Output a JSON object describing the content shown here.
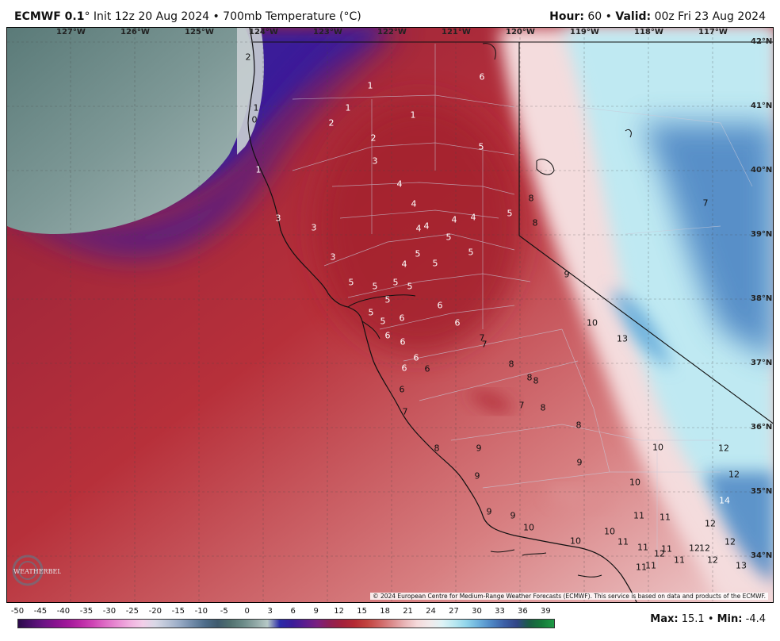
{
  "header": {
    "model": "ECMWF 0.1",
    "init": "° Init 12z 20 Aug 2024 • 700mb Temperature (°C)",
    "hour_label": "Hour:",
    "hour_value": "60",
    "valid_label": "Valid:",
    "valid_value": "00z Fri 23 Aug 2024"
  },
  "map": {
    "longitude_labels": [
      "127°W",
      "126°W",
      "125°W",
      "124°W",
      "123°W",
      "122°W",
      "121°W",
      "120°W",
      "119°W",
      "118°W",
      "117°W"
    ],
    "latitude_labels": [
      "42°N",
      "41°N",
      "40°N",
      "39°N",
      "38°N",
      "37°N",
      "36°N",
      "35°N",
      "34°N"
    ],
    "temperature_labels": [
      {
        "v": "2",
        "c": "black"
      },
      {
        "v": "1",
        "c": "black"
      },
      {
        "v": "0",
        "c": "black"
      },
      {
        "v": "1",
        "c": "white"
      },
      {
        "v": "1",
        "c": "white"
      },
      {
        "v": "1",
        "c": "white"
      },
      {
        "v": "2",
        "c": "white"
      },
      {
        "v": "2",
        "c": "white"
      },
      {
        "v": "3",
        "c": "white"
      },
      {
        "v": "1",
        "c": "white"
      },
      {
        "v": "6",
        "c": "white"
      },
      {
        "v": "5",
        "c": "white"
      },
      {
        "v": "4",
        "c": "white"
      },
      {
        "v": "4",
        "c": "white"
      },
      {
        "v": "4",
        "c": "white"
      },
      {
        "v": "4",
        "c": "white"
      },
      {
        "v": "4",
        "c": "white"
      },
      {
        "v": "4",
        "c": "white"
      },
      {
        "v": "5",
        "c": "white"
      },
      {
        "v": "5",
        "c": "white"
      },
      {
        "v": "3",
        "c": "white"
      },
      {
        "v": "3",
        "c": "white"
      },
      {
        "v": "3",
        "c": "white"
      },
      {
        "v": "4",
        "c": "white"
      },
      {
        "v": "5",
        "c": "white"
      },
      {
        "v": "5",
        "c": "white"
      },
      {
        "v": "5",
        "c": "white"
      },
      {
        "v": "5",
        "c": "white"
      },
      {
        "v": "5",
        "c": "white"
      },
      {
        "v": "5",
        "c": "white"
      },
      {
        "v": "5",
        "c": "white"
      },
      {
        "v": "5",
        "c": "white"
      },
      {
        "v": "5",
        "c": "white"
      },
      {
        "v": "5",
        "c": "white"
      },
      {
        "v": "6",
        "c": "white"
      },
      {
        "v": "6",
        "c": "white"
      },
      {
        "v": "6",
        "c": "white"
      },
      {
        "v": "6",
        "c": "white"
      },
      {
        "v": "6",
        "c": "white"
      },
      {
        "v": "6",
        "c": "white"
      },
      {
        "v": "6",
        "c": "white"
      },
      {
        "v": "6",
        "c": "black"
      },
      {
        "v": "6",
        "c": "black"
      },
      {
        "v": "7",
        "c": "black"
      },
      {
        "v": "7",
        "c": "black"
      },
      {
        "v": "7",
        "c": "black"
      },
      {
        "v": "8",
        "c": "black"
      },
      {
        "v": "8",
        "c": "black"
      },
      {
        "v": "7",
        "c": "black"
      },
      {
        "v": "8",
        "c": "black"
      },
      {
        "v": "8",
        "c": "black"
      },
      {
        "v": "8",
        "c": "black"
      },
      {
        "v": "8",
        "c": "black"
      },
      {
        "v": "9",
        "c": "black"
      },
      {
        "v": "9",
        "c": "black"
      },
      {
        "v": "9",
        "c": "black"
      },
      {
        "v": "9",
        "c": "black"
      },
      {
        "v": "9",
        "c": "black"
      },
      {
        "v": "9",
        "c": "black"
      },
      {
        "v": "10",
        "c": "black"
      },
      {
        "v": "10",
        "c": "black"
      },
      {
        "v": "10",
        "c": "black"
      },
      {
        "v": "10",
        "c": "black"
      },
      {
        "v": "10",
        "c": "black"
      },
      {
        "v": "10",
        "c": "black"
      },
      {
        "v": "11",
        "c": "black"
      },
      {
        "v": "11",
        "c": "black"
      },
      {
        "v": "11",
        "c": "black"
      },
      {
        "v": "11",
        "c": "black"
      },
      {
        "v": "11",
        "c": "black"
      },
      {
        "v": "11",
        "c": "black"
      },
      {
        "v": "11",
        "c": "black"
      },
      {
        "v": "11",
        "c": "black"
      },
      {
        "v": "12",
        "c": "black"
      },
      {
        "v": "12",
        "c": "black"
      },
      {
        "v": "12",
        "c": "black"
      },
      {
        "v": "12",
        "c": "black"
      },
      {
        "v": "12",
        "c": "black"
      },
      {
        "v": "12",
        "c": "black"
      },
      {
        "v": "12",
        "c": "black"
      },
      {
        "v": "12",
        "c": "black"
      },
      {
        "v": "13",
        "c": "black"
      },
      {
        "v": "13",
        "c": "black"
      },
      {
        "v": "14",
        "c": "white"
      },
      {
        "v": "7",
        "c": "black"
      },
      {
        "v": "8",
        "c": "black"
      },
      {
        "v": "8",
        "c": "black"
      }
    ],
    "copyright": "© 2024 European Centre for Medium-Range Weather Forecasts (ECMWF). This service is based on data and products of the ECMWF.",
    "logo_text": "WEATHERBELL"
  },
  "colorbar": {
    "ticks": [
      "-50",
      "-45",
      "-40",
      "-35",
      "-30",
      "-25",
      "-20",
      "-15",
      "-10",
      "-5",
      "0",
      "3",
      "6",
      "9",
      "12",
      "15",
      "18",
      "21",
      "24",
      "27",
      "30",
      "33",
      "36",
      "39"
    ],
    "colors": [
      "#2b0a4a",
      "#4a0f6b",
      "#6a1484",
      "#88128f",
      "#a2189a",
      "#bb2aa6",
      "#cf46b5",
      "#de6cc5",
      "#e98fd3",
      "#f1b2e0",
      "#f3cfe9",
      "#d8d8e6",
      "#b9c3d6",
      "#96a9c4",
      "#708aa8",
      "#4d6c89",
      "#3f5b6e",
      "#50706f",
      "#6a8a87",
      "#8ea6a4",
      "#b7c9c6",
      "#2a2aa8",
      "#3a1c99",
      "#5b1c8f",
      "#7a1f7f",
      "#8f1f54",
      "#a3213c",
      "#b52a33",
      "#c2433f",
      "#cf6463",
      "#db8b8c",
      "#e8b4b6",
      "#f5d9da",
      "#f2e9ea",
      "#dff3f6",
      "#b9e8f1",
      "#8fd4ea",
      "#6aaedb",
      "#4d86c4",
      "#3c5fa6",
      "#324687",
      "#1a5d45",
      "#157a3a",
      "#1e9a45"
    ],
    "max_label": "Max:",
    "max_value": "15.1",
    "min_label": "Min:",
    "min_value": "-4.4"
  }
}
